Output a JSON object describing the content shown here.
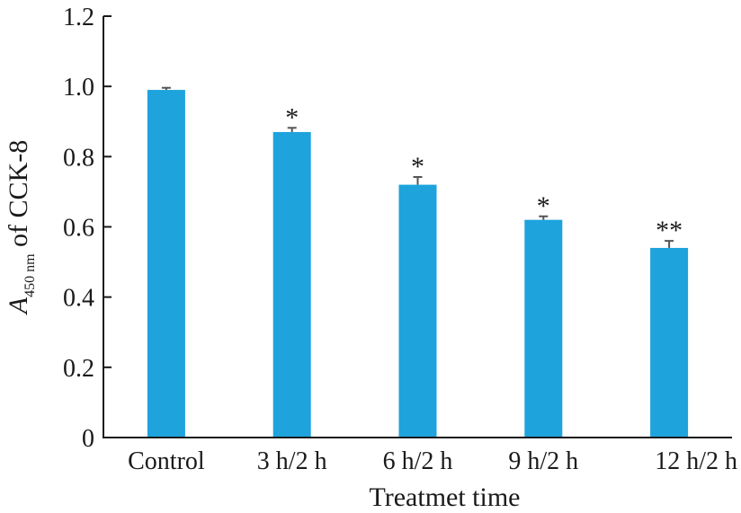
{
  "chart_data": {
    "type": "bar",
    "categories": [
      "Control",
      "3 h/2 h",
      "6 h/2 h",
      "9 h/2 h",
      "12 h/2 h"
    ],
    "values": [
      0.99,
      0.87,
      0.72,
      0.62,
      0.54
    ],
    "errors": [
      0.006,
      0.012,
      0.022,
      0.01,
      0.02
    ],
    "annotations": [
      "",
      "*",
      "*",
      "*",
      "**"
    ],
    "xlabel": "Treatmet time",
    "ylabel": {
      "symbol": "A",
      "subscript": "450 nm",
      "rest": " of CCK-8"
    },
    "ylim": [
      0,
      1.2
    ],
    "yticks": [
      "0",
      "0.2",
      "0.4",
      "0.6",
      "0.8",
      "1.0",
      "1.2"
    ],
    "grid": false,
    "legend": "none",
    "bar_color": "#1ea3dc",
    "error_color": "#555555"
  }
}
